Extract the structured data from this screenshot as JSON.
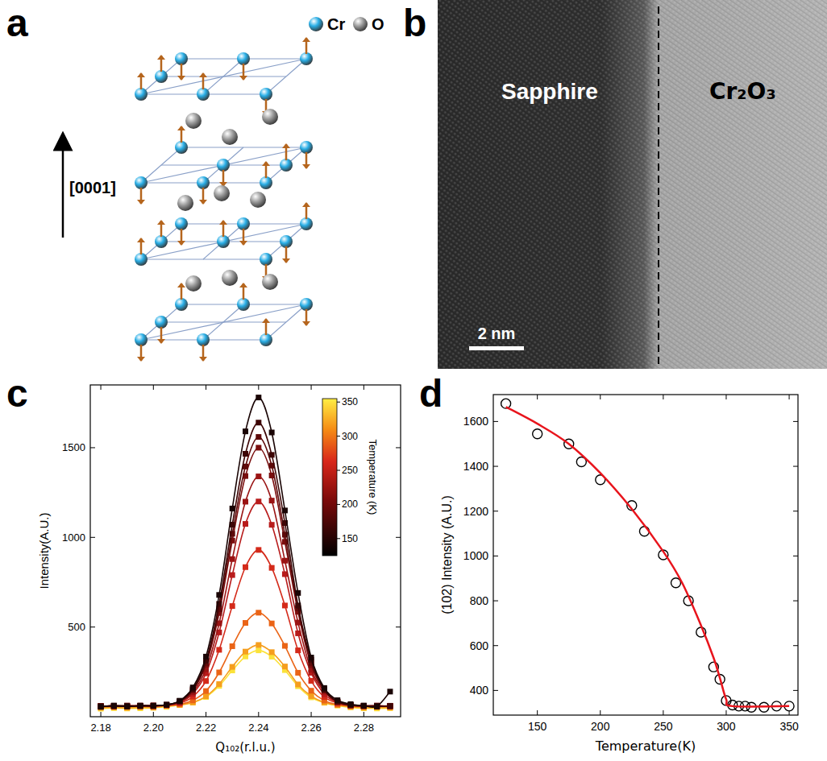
{
  "panel_letters": [
    "a",
    "b",
    "c",
    "d"
  ],
  "panels": {
    "a": {
      "legend": [
        {
          "label": "Cr",
          "color": "#29aee6"
        },
        {
          "label": "O",
          "color": "#9e9e9e"
        }
      ],
      "axis_label": "[0001]"
    },
    "b": {
      "labels": [
        "Sapphire",
        "Cr₂O₃"
      ],
      "scale_bar": "2 nm"
    }
  },
  "chart_data": [
    {
      "type": "scatter",
      "x_label": "Q₁₀₂(r.l.u.)",
      "y_label": "Intensity(A.U.)",
      "x": [
        2.18,
        2.185,
        2.19,
        2.195,
        2.2,
        2.205,
        2.21,
        2.215,
        2.22,
        2.225,
        2.23,
        2.235,
        2.24,
        2.245,
        2.25,
        2.255,
        2.26,
        2.265,
        2.27,
        2.275,
        2.28,
        2.285,
        2.29
      ],
      "xlim": [
        2.176,
        2.294
      ],
      "ylim": [
        0,
        1850
      ],
      "xticks": [
        2.18,
        {
          "value": 2.2,
          "label": "2.20"
        },
        2.22,
        2.24,
        2.26,
        2.28
      ],
      "yticks": [
        500,
        1000,
        1500
      ],
      "colorbar": {
        "label": "Temperature (K)",
        "range": [
          125,
          355
        ],
        "ticks": [
          150,
          200,
          250,
          300,
          350
        ]
      },
      "series": [
        {
          "color": "#fbe23a",
          "marker": "square",
          "line_style": "solid",
          "values": [
            45,
            48,
            46,
            47,
            50,
            55,
            65,
            79,
            110,
            172,
            258,
            336,
            370,
            335,
            260,
            170,
            108,
            78,
            62,
            52,
            47,
            46,
            48
          ]
        },
        {
          "color": "#f59e1e",
          "marker": "square",
          "line_style": "solid",
          "values": [
            50,
            52,
            49,
            53,
            51,
            61,
            66,
            80,
            114,
            182,
            278,
            363,
            400,
            360,
            280,
            180,
            115,
            80,
            65,
            55,
            50,
            52,
            50
          ]
        },
        {
          "color": "#ea6416",
          "marker": "square",
          "line_style": "solid",
          "values": [
            55,
            58,
            56,
            59,
            57,
            62,
            69,
            91,
            143,
            247,
            393,
            523,
            580,
            520,
            395,
            245,
            145,
            90,
            68,
            60,
            57,
            56,
            58
          ]
        },
        {
          "color": "#d42a1a",
          "marker": "square",
          "line_style": "solid",
          "values": [
            58,
            60,
            59,
            61,
            60,
            63,
            75,
            112,
            199,
            373,
            617,
            834,
            930,
            830,
            620,
            370,
            200,
            110,
            76,
            62,
            60,
            58,
            60
          ]
        },
        {
          "color": "#b81c1c",
          "marker": "square",
          "line_style": "solid",
          "values": [
            60,
            58,
            61,
            60,
            59,
            65,
            79,
            128,
            242,
            470,
            790,
            1075,
            1200,
            1070,
            795,
            465,
            245,
            126,
            80,
            63,
            59,
            61,
            58
          ]
        },
        {
          "color": "#9a1414",
          "marker": "square",
          "line_style": "solid",
          "values": [
            59,
            60,
            58,
            61,
            60,
            65,
            82,
            137,
            265,
            521,
            879,
            1199,
            1340,
            1205,
            870,
            525,
            262,
            140,
            80,
            64,
            60,
            59,
            61
          ]
        },
        {
          "color": "#7a0e0e",
          "marker": "square",
          "line_style": "solid",
          "values": [
            57,
            61,
            59,
            60,
            62,
            66,
            84,
            146,
            290,
            578,
            982,
            1342,
            1500,
            1345,
            975,
            585,
            288,
            148,
            83,
            65,
            61,
            58,
            60
          ]
        },
        {
          "color": "#5e0a0a",
          "marker": "square",
          "line_style": "solid",
          "values": [
            60,
            58,
            62,
            59,
            63,
            66,
            86,
            150,
            300,
            600,
            1020,
            1395,
            1560,
            1400,
            1015,
            605,
            300,
            152,
            84,
            66,
            60,
            62,
            58
          ]
        },
        {
          "color": "#3d0606",
          "marker": "square",
          "line_style": "solid",
          "values": [
            58,
            60,
            57,
            62,
            61,
            66,
            87,
            155,
            313,
            629,
            1071,
            1466,
            1640,
            1460,
            1080,
            620,
            318,
            150,
            85,
            64,
            60,
            57,
            60
          ]
        },
        {
          "color": "#1a0505",
          "marker": "square",
          "line_style": "solid",
          "values": [
            55,
            62,
            58,
            61,
            60,
            67,
            89,
            163,
            335,
            679,
            1161,
            1591,
            1780,
            1585,
            1150,
            690,
            330,
            160,
            92,
            70,
            62,
            58,
            140
          ]
        }
      ]
    },
    {
      "type": "scatter",
      "x_label": "Temperature(K)",
      "y_label": "(102) Intensity (A.U.)",
      "xlim": [
        115,
        357
      ],
      "ylim": [
        290,
        1720
      ],
      "xticks": [
        150,
        200,
        250,
        300,
        350
      ],
      "yticks": [
        400,
        600,
        800,
        1000,
        1200,
        1400,
        1600
      ],
      "series": [
        {
          "type": "scatter",
          "marker": "circle",
          "color": "#000000",
          "x": [
            125,
            150,
            175,
            185,
            200,
            225,
            235,
            250,
            260,
            270,
            280,
            290,
            295,
            300,
            305,
            310,
            315,
            320,
            330,
            340,
            350
          ],
          "values": [
            1680,
            1545,
            1500,
            1420,
            1340,
            1225,
            1110,
            1005,
            880,
            800,
            660,
            505,
            450,
            355,
            335,
            330,
            330,
            325,
            325,
            330,
            330
          ]
        },
        {
          "type": "line",
          "line_style": "solid",
          "color": "#e8141c",
          "x": [
            125,
            150,
            175,
            200,
            225,
            250,
            265,
            280,
            290,
            295,
            300,
            305,
            350
          ],
          "values": [
            1665,
            1590,
            1500,
            1370,
            1210,
            1020,
            880,
            690,
            545,
            455,
            360,
            330,
            330
          ]
        }
      ]
    }
  ]
}
